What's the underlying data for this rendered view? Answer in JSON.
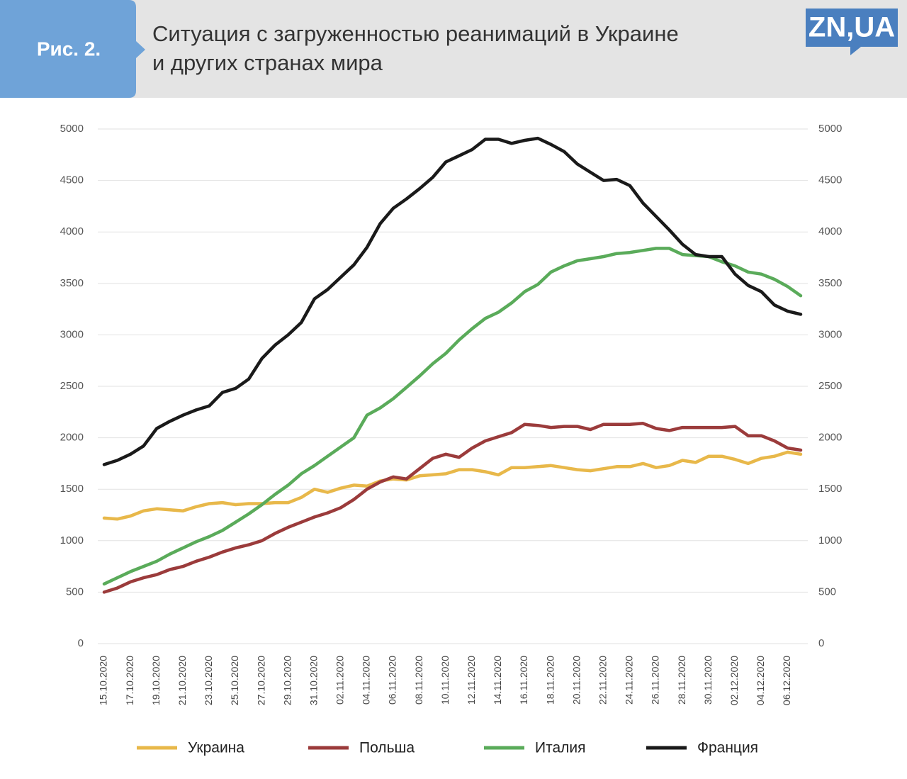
{
  "header": {
    "label": "Рис. 2.",
    "title_lines": [
      "Ситуация с загруженностью реанимаций в Украине",
      "и других странах мира"
    ],
    "logo": "ZN,UA"
  },
  "chart_data": {
    "type": "line",
    "categories": [
      "15.10.2020",
      null,
      "17.10.2020",
      null,
      "19.10.2020",
      null,
      "21.10.2020",
      null,
      "23.10.2020",
      null,
      "25.10.2020",
      null,
      "27.10.2020",
      null,
      "29.10.2020",
      null,
      "31.10.2020",
      null,
      "02.11.2020",
      null,
      "04.11.2020",
      null,
      "06.11.2020",
      null,
      "08.11.2020",
      null,
      "10.11.2020",
      null,
      "12.11.2020",
      null,
      "14.11.2020",
      null,
      "16.11.2020",
      null,
      "18.11.2020",
      null,
      "20.11.2020",
      null,
      "22.11.2020",
      null,
      "24.11.2020",
      null,
      "26.11.2020",
      null,
      "28.11.2020",
      null,
      "30.11.2020",
      null,
      "02.12.2020",
      null,
      "04.12.2020",
      null,
      "06.12.2020",
      null
    ],
    "series": [
      {
        "name": "Украина",
        "color": "#e8b84a",
        "values": [
          1220,
          1210,
          1240,
          1290,
          1310,
          1300,
          1290,
          1330,
          1360,
          1370,
          1350,
          1360,
          1360,
          1370,
          1370,
          1420,
          1500,
          1470,
          1510,
          1540,
          1530,
          1580,
          1600,
          1590,
          1630,
          1640,
          1650,
          1690,
          1690,
          1670,
          1640,
          1710,
          1710,
          1720,
          1730,
          1710,
          1690,
          1680,
          1700,
          1720,
          1720,
          1750,
          1710,
          1730,
          1780,
          1760,
          1820,
          1820,
          1790,
          1750,
          1800,
          1820,
          1860,
          1840
        ]
      },
      {
        "name": "Польша",
        "color": "#9b3b3b",
        "values": [
          500,
          540,
          600,
          640,
          670,
          720,
          750,
          800,
          840,
          890,
          930,
          960,
          1000,
          1070,
          1130,
          1180,
          1230,
          1270,
          1320,
          1400,
          1500,
          1570,
          1620,
          1600,
          1700,
          1800,
          1840,
          1810,
          1900,
          1970,
          2010,
          2050,
          2130,
          2120,
          2100,
          2110,
          2110,
          2080,
          2130,
          2130,
          2130,
          2140,
          2090,
          2070,
          2100,
          2100,
          2100,
          2100,
          2110,
          2020,
          2020,
          1970,
          1900,
          1880
        ]
      },
      {
        "name": "Италия",
        "color": "#5aab5a",
        "values": [
          580,
          640,
          700,
          750,
          800,
          870,
          930,
          990,
          1040,
          1100,
          1180,
          1260,
          1350,
          1450,
          1540,
          1650,
          1730,
          1820,
          1910,
          2000,
          2220,
          2290,
          2380,
          2490,
          2600,
          2720,
          2820,
          2950,
          3060,
          3160,
          3220,
          3310,
          3420,
          3490,
          3610,
          3670,
          3720,
          3740,
          3760,
          3790,
          3800,
          3820,
          3840,
          3840,
          3780,
          3770,
          3760,
          3710,
          3670,
          3610,
          3590,
          3540,
          3470,
          3380
        ]
      },
      {
        "name": "Франция",
        "color": "#1a1a1a",
        "values": [
          1740,
          1780,
          1840,
          1920,
          2090,
          2160,
          2220,
          2270,
          2310,
          2440,
          2480,
          2570,
          2770,
          2900,
          3000,
          3120,
          3350,
          3440,
          3560,
          3680,
          3850,
          4080,
          4230,
          4320,
          4420,
          4530,
          4680,
          4740,
          4800,
          4900,
          4900,
          4860,
          4890,
          4910,
          4850,
          4780,
          4660,
          4580,
          4500,
          4510,
          4450,
          4280,
          4150,
          4020,
          3880,
          3780,
          3760,
          3760,
          3590,
          3480,
          3420,
          3290,
          3230,
          3200
        ]
      }
    ],
    "ylim": [
      0,
      5000
    ],
    "yticks": [
      0,
      500,
      1000,
      1500,
      2000,
      2500,
      3000,
      3500,
      4000,
      4500,
      5000
    ],
    "y2lim": [
      0,
      5000
    ],
    "y2ticks": [
      0,
      500,
      1000,
      1500,
      2000,
      2500,
      3000,
      3500,
      4000,
      4500,
      5000
    ],
    "grid": true,
    "legend": "bottom"
  }
}
